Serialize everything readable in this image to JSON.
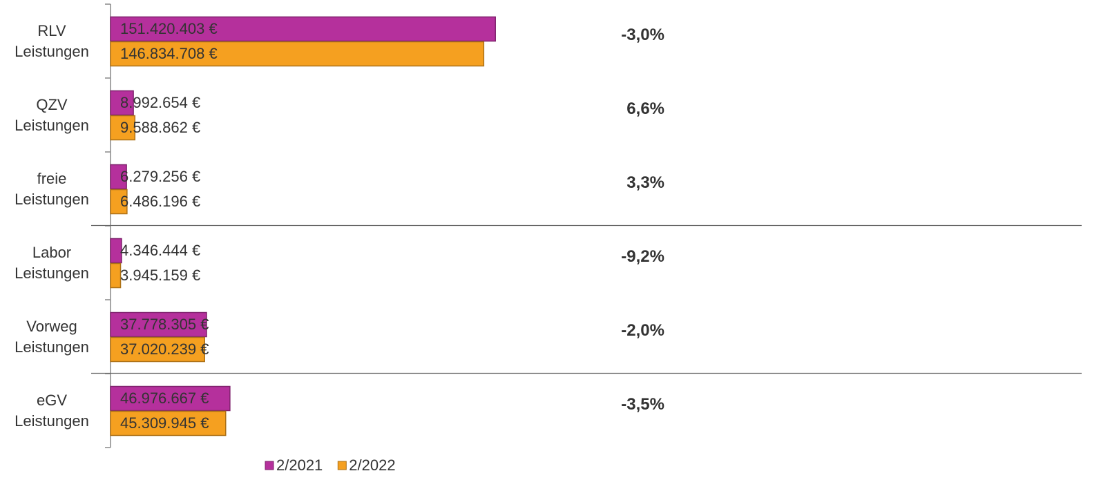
{
  "chart_data": {
    "type": "barh",
    "categories": [
      "RLV Leistungen",
      "QZV Leistungen",
      "freie Leistungen",
      "Labor Leistungen",
      "Vorweg Leistungen",
      "eGV Leistungen"
    ],
    "series": [
      {
        "name": "2/2021",
        "color": "#b5309c",
        "values": [
          151420403,
          8992654,
          6279256,
          4346444,
          37778305,
          46976667
        ],
        "value_labels": [
          "151.420.403 €",
          "8.992.654 €",
          "6.279.256 €",
          "4.346.444 €",
          "37.778.305 €",
          "46.976.667 €"
        ]
      },
      {
        "name": "2/2022",
        "color": "#f5a020",
        "values": [
          146834708,
          9588862,
          6486196,
          3945159,
          37020239,
          45309945
        ],
        "value_labels": [
          "146.834.708 €",
          "9.588.862 €",
          "6.486.196 €",
          "3.945.159 €",
          "37.020.239 €",
          "45.309.945 €"
        ]
      }
    ],
    "annotations": [
      "-3,0%",
      "6,6%",
      "3,3%",
      "-9,2%",
      "-2,0%",
      "-3,5%"
    ],
    "xlim": [
      0,
      250000000
    ],
    "legend": "bottom"
  }
}
